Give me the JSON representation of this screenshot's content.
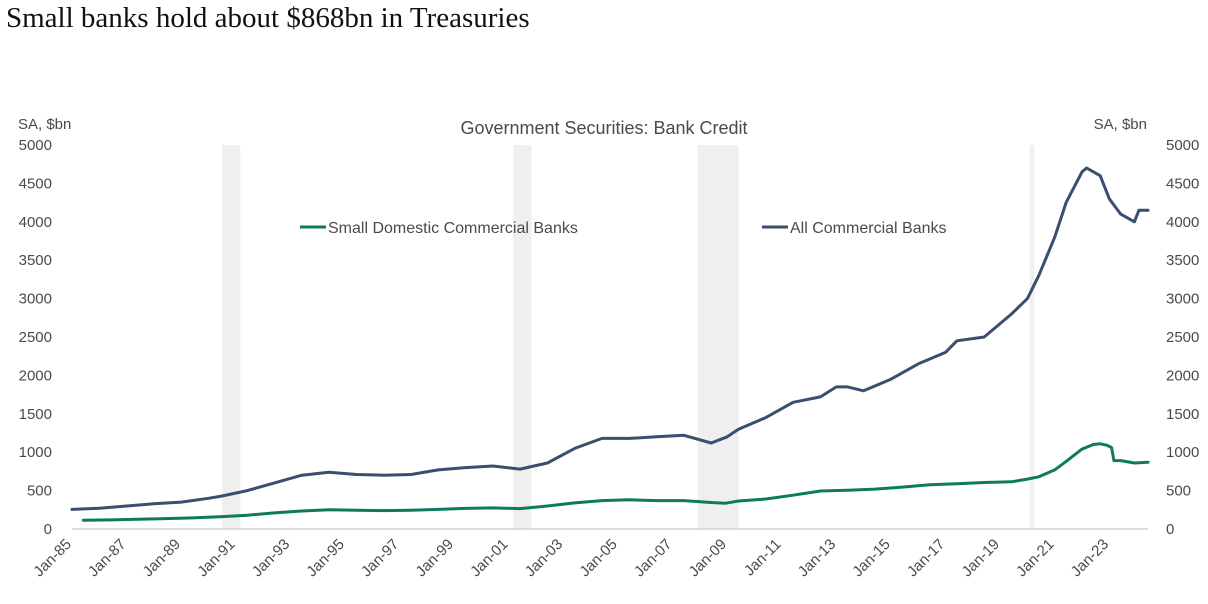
{
  "page": {
    "headline": "Small banks hold about $868bn in Treasuries"
  },
  "chart_data": {
    "type": "line",
    "title": "Government Securities: Bank Credit",
    "ylabel_left": "SA, $bn",
    "ylabel_right": "SA, $bn",
    "ylim": [
      0,
      5000
    ],
    "yticks": [
      0,
      500,
      1000,
      1500,
      2000,
      2500,
      3000,
      3500,
      4000,
      4500,
      5000
    ],
    "xlim": [
      "1985-01",
      "2024-06"
    ],
    "xticks": [
      "Jan-85",
      "Jan-87",
      "Jan-89",
      "Jan-91",
      "Jan-93",
      "Jan-95",
      "Jan-97",
      "Jan-99",
      "Jan-01",
      "Jan-03",
      "Jan-05",
      "Jan-07",
      "Jan-09",
      "Jan-11",
      "Jan-13",
      "Jan-15",
      "Jan-17",
      "Jan-19",
      "Jan-21",
      "Jan-23"
    ],
    "recessions": [
      [
        "1990-07",
        "1991-03"
      ],
      [
        "2001-03",
        "2001-11"
      ],
      [
        "2007-12",
        "2009-06"
      ],
      [
        "2020-02",
        "2020-04"
      ]
    ],
    "legend_position": "top-center",
    "series": [
      {
        "name": "Small Domestic Commercial Banks",
        "color": "#0b7a5e",
        "points": [
          [
            "1985-06",
            115
          ],
          [
            "1986-06",
            118
          ],
          [
            "1987-06",
            127
          ],
          [
            "1988-06",
            135
          ],
          [
            "1989-06",
            145
          ],
          [
            "1990-06",
            160
          ],
          [
            "1991-06",
            180
          ],
          [
            "1992-06",
            210
          ],
          [
            "1993-06",
            235
          ],
          [
            "1994-06",
            250
          ],
          [
            "1995-06",
            245
          ],
          [
            "1996-06",
            240
          ],
          [
            "1997-06",
            245
          ],
          [
            "1998-06",
            255
          ],
          [
            "1999-06",
            268
          ],
          [
            "2000-06",
            275
          ],
          [
            "2001-06",
            265
          ],
          [
            "2002-06",
            300
          ],
          [
            "2003-06",
            340
          ],
          [
            "2004-06",
            370
          ],
          [
            "2005-06",
            380
          ],
          [
            "2006-06",
            370
          ],
          [
            "2007-06",
            370
          ],
          [
            "2008-06",
            345
          ],
          [
            "2008-12",
            335
          ],
          [
            "2009-06",
            365
          ],
          [
            "2010-06",
            390
          ],
          [
            "2011-06",
            440
          ],
          [
            "2012-06",
            495
          ],
          [
            "2013-06",
            505
          ],
          [
            "2014-06",
            520
          ],
          [
            "2015-06",
            545
          ],
          [
            "2016-06",
            575
          ],
          [
            "2017-06",
            590
          ],
          [
            "2018-06",
            605
          ],
          [
            "2019-06",
            615
          ],
          [
            "2020-01",
            650
          ],
          [
            "2020-06",
            680
          ],
          [
            "2021-01",
            770
          ],
          [
            "2021-06",
            880
          ],
          [
            "2022-01",
            1040
          ],
          [
            "2022-06",
            1100
          ],
          [
            "2022-09",
            1110
          ],
          [
            "2022-12",
            1090
          ],
          [
            "2023-02",
            1060
          ],
          [
            "2023-03",
            890
          ],
          [
            "2023-06",
            890
          ],
          [
            "2023-12",
            860
          ],
          [
            "2024-06",
            868
          ]
        ]
      },
      {
        "name": "All Commercial Banks",
        "color": "#3a4e6e",
        "points": [
          [
            "1985-01",
            255
          ],
          [
            "1986-01",
            270
          ],
          [
            "1987-01",
            300
          ],
          [
            "1988-01",
            330
          ],
          [
            "1989-01",
            350
          ],
          [
            "1990-01",
            400
          ],
          [
            "1990-07",
            430
          ],
          [
            "1991-06",
            500
          ],
          [
            "1992-06",
            600
          ],
          [
            "1993-06",
            700
          ],
          [
            "1994-06",
            740
          ],
          [
            "1995-06",
            710
          ],
          [
            "1996-06",
            700
          ],
          [
            "1997-06",
            710
          ],
          [
            "1998-06",
            770
          ],
          [
            "1999-06",
            800
          ],
          [
            "2000-06",
            820
          ],
          [
            "2001-06",
            780
          ],
          [
            "2002-06",
            860
          ],
          [
            "2003-06",
            1050
          ],
          [
            "2004-06",
            1180
          ],
          [
            "2005-06",
            1180
          ],
          [
            "2006-06",
            1200
          ],
          [
            "2007-06",
            1220
          ],
          [
            "2008-06",
            1120
          ],
          [
            "2009-01",
            1200
          ],
          [
            "2009-06",
            1300
          ],
          [
            "2010-06",
            1450
          ],
          [
            "2011-06",
            1650
          ],
          [
            "2012-06",
            1720
          ],
          [
            "2013-01",
            1850
          ],
          [
            "2013-06",
            1850
          ],
          [
            "2014-01",
            1800
          ],
          [
            "2015-01",
            1950
          ],
          [
            "2016-01",
            2150
          ],
          [
            "2017-01",
            2300
          ],
          [
            "2017-06",
            2450
          ],
          [
            "2018-06",
            2500
          ],
          [
            "2019-06",
            2800
          ],
          [
            "2020-01",
            3000
          ],
          [
            "2020-06",
            3300
          ],
          [
            "2021-01",
            3800
          ],
          [
            "2021-06",
            4250
          ],
          [
            "2022-01",
            4650
          ],
          [
            "2022-03",
            4700
          ],
          [
            "2022-09",
            4600
          ],
          [
            "2023-01",
            4300
          ],
          [
            "2023-06",
            4100
          ],
          [
            "2023-12",
            4000
          ],
          [
            "2024-02",
            4150
          ],
          [
            "2024-06",
            4150
          ]
        ]
      }
    ]
  }
}
